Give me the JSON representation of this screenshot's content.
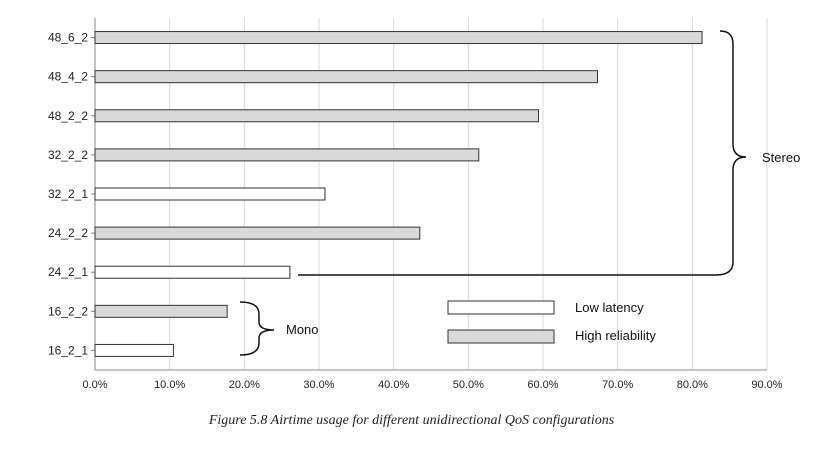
{
  "chart_data": {
    "type": "bar",
    "orientation": "horizontal",
    "categories": [
      "48_6_2",
      "48_4_2",
      "48_2_2",
      "32_2_2",
      "32_2_1",
      "24_2_2",
      "24_2_1",
      "16_2_2",
      "16_2_1"
    ],
    "values": [
      81.3,
      67.3,
      59.4,
      51.4,
      30.8,
      43.5,
      26.1,
      17.7,
      10.5
    ],
    "bar_types": [
      "High reliability",
      "High reliability",
      "High reliability",
      "High reliability",
      "Low latency",
      "High reliability",
      "Low latency",
      "High reliability",
      "Low latency"
    ],
    "xlim": [
      0,
      90
    ],
    "x_ticks": [
      "0.0%",
      "10.0%",
      "20.0%",
      "30.0%",
      "40.0%",
      "50.0%",
      "60.0%",
      "70.0%",
      "80.0%",
      "90.0%"
    ],
    "grid": true,
    "legend": [
      {
        "name": "Low latency",
        "color": "#ffffff"
      },
      {
        "name": "High reliability",
        "color": "#d9d9d9"
      }
    ],
    "legend_position": "bottom-right",
    "annotations": {
      "stereo": "Stereo",
      "mono": "Mono"
    }
  },
  "caption": "Figure 5.8  Airtime usage for different unidirectional QoS configurations",
  "colors": {
    "high_reliability": "#d9d9d9",
    "low_latency": "#ffffff",
    "bar_stroke": "#333333",
    "grid": "#d9d9d9",
    "axis": "#888888"
  }
}
